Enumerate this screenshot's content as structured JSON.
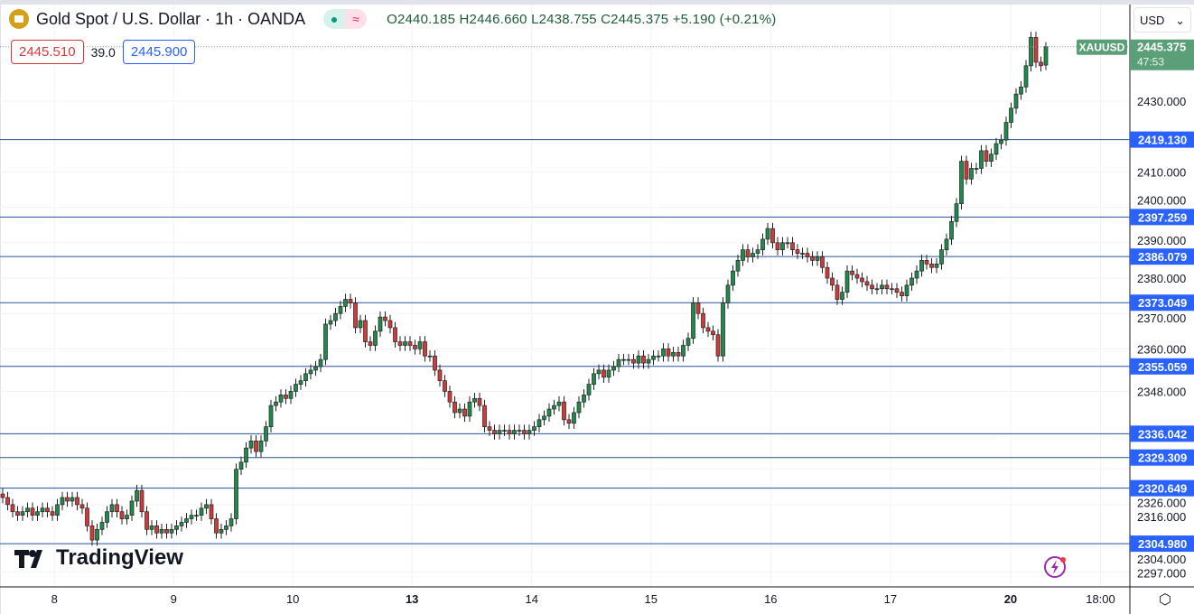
{
  "header": {
    "title": "Gold Spot / U.S. Dollar · 1h · OANDA",
    "ohlc": "O2440.185 H2446.660 L2438.755 C2445.375 +5.190 (+0.21%)",
    "status_icons": [
      "market-open-dot-icon",
      "delayed-wave-icon"
    ]
  },
  "bid_ask": {
    "bid": "2445.510",
    "spread": "39.0",
    "ask": "2445.900"
  },
  "currency": {
    "selected": "USD"
  },
  "last_price": {
    "symbol": "XAUUSD",
    "price": "2445.375",
    "countdown": "47:53"
  },
  "branding": {
    "logo_text": "TradingView"
  },
  "colors": {
    "up": "#1f8a4c",
    "down": "#d23a3a",
    "level_line": "#2a5298",
    "level_label": "#2962ff",
    "last_price": "#5b9f78",
    "bid": "#d23a3a",
    "ask": "#2962ff"
  },
  "chart_data": {
    "type": "candlestick",
    "interval": "1h",
    "y_axis": {
      "ticks": [
        "2430.000",
        "2410.000",
        "2400.000",
        "2390.000",
        "2380.000",
        "2370.000",
        "2360.000",
        "2348.000",
        "2326.000",
        "2316.000",
        "2304.000",
        "2297.000"
      ],
      "range": [
        2294,
        2452
      ]
    },
    "x_axis": {
      "ticks": [
        {
          "label": "8",
          "bar": 10.4
        },
        {
          "label": "9",
          "bar": 34.4
        },
        {
          "label": "10",
          "bar": 58.4
        },
        {
          "label": "13",
          "bar": 82.4
        },
        {
          "label": "14",
          "bar": 106.5
        },
        {
          "label": "15",
          "bar": 130.5
        },
        {
          "label": "16",
          "bar": 154.6
        },
        {
          "label": "17",
          "bar": 178.7
        },
        {
          "label": "20",
          "bar": 202.9
        },
        {
          "label": "18:00",
          "bar": 221
        }
      ]
    },
    "grid": true,
    "horizontal_levels": [
      "2419.130",
      "2397.259",
      "2386.079",
      "2373.049",
      "2355.059",
      "2336.042",
      "2329.309",
      "2320.649",
      "2304.980"
    ],
    "last_candle": {
      "open": 2440.185,
      "high": 2446.66,
      "low": 2438.755,
      "close": 2445.375
    },
    "closes": [
      2318,
      2316,
      2314,
      2313,
      2314,
      2315,
      2313,
      2314,
      2315,
      2314,
      2313,
      2316,
      2318,
      2317,
      2318,
      2316,
      2315,
      2310,
      2306,
      2309,
      2311,
      2314,
      2316,
      2314,
      2312,
      2313,
      2317,
      2320,
      2314,
      2309,
      2310,
      2308,
      2309,
      2308,
      2309,
      2310,
      2311,
      2312,
      2313,
      2313,
      2315,
      2316,
      2312,
      2308,
      2309,
      2310,
      2312,
      2326,
      2328,
      2332,
      2334,
      2331,
      2334,
      2338,
      2344,
      2345,
      2347,
      2346,
      2348,
      2350,
      2351,
      2353,
      2354,
      2355,
      2357,
      2367,
      2368,
      2370,
      2372,
      2374,
      2373,
      2366,
      2368,
      2362,
      2361,
      2365,
      2369,
      2368,
      2366,
      2362,
      2361,
      2362,
      2361,
      2360,
      2362,
      2358,
      2358,
      2354,
      2351,
      2348,
      2345,
      2342,
      2343,
      2341,
      2345,
      2346,
      2344,
      2338,
      2337,
      2336,
      2337,
      2337,
      2336,
      2337,
      2337,
      2336,
      2337,
      2338,
      2340,
      2341,
      2343,
      2344,
      2345,
      2340,
      2339,
      2342,
      2345,
      2347,
      2350,
      2353,
      2354,
      2352,
      2354,
      2355,
      2357,
      2357,
      2357,
      2356,
      2358,
      2356,
      2357,
      2358,
      2358,
      2360,
      2358,
      2359,
      2358,
      2361,
      2363,
      2373,
      2370,
      2366,
      2365,
      2364,
      2358,
      2373,
      2378,
      2382,
      2385,
      2388,
      2386,
      2387,
      2388,
      2391,
      2394,
      2390,
      2388,
      2390,
      2390,
      2388,
      2387,
      2387,
      2386,
      2385,
      2386,
      2383,
      2380,
      2378,
      2374,
      2376,
      2382,
      2381,
      2380,
      2379,
      2378,
      2377,
      2377,
      2378,
      2377,
      2377,
      2376,
      2375,
      2378,
      2380,
      2382,
      2385,
      2384,
      2383,
      2384,
      2388,
      2391,
      2396,
      2401,
      2413,
      2408,
      2411,
      2411,
      2416,
      2413,
      2415,
      2418,
      2419,
      2424,
      2428,
      2432,
      2434,
      2440,
      2448,
      2441,
      2440,
      2445.375
    ]
  }
}
